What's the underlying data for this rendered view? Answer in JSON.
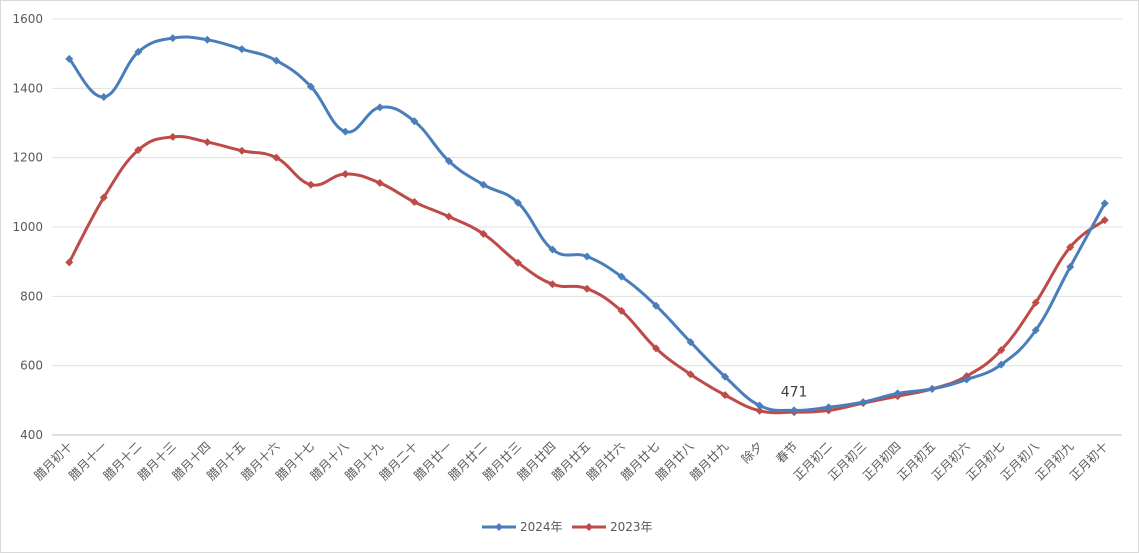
{
  "chart_data": {
    "type": "line",
    "title": "",
    "xlabel": "",
    "ylabel": "",
    "ylim": [
      400,
      1600
    ],
    "yticks": [
      400,
      600,
      800,
      1000,
      1200,
      1400,
      1600
    ],
    "grid": "horizontal",
    "legend_position": "bottom",
    "categories": [
      "腊月初十",
      "腊月十一",
      "腊月十二",
      "腊月十三",
      "腊月十四",
      "腊月十五",
      "腊月十六",
      "腊月十七",
      "腊月十八",
      "腊月十九",
      "腊月二十",
      "腊月廿一",
      "腊月廿二",
      "腊月廿三",
      "腊月廿四",
      "腊月廿五",
      "腊月廿六",
      "腊月廿七",
      "腊月廿八",
      "腊月廿九",
      "除夕",
      "春节",
      "正月初二",
      "正月初三",
      "正月初四",
      "正月初五",
      "正月初六",
      "正月初七",
      "正月初八",
      "正月初九",
      "正月初十"
    ],
    "series": [
      {
        "name": "2024年",
        "color": "#4a7ebb",
        "values": [
          1485,
          1375,
          1505,
          1545,
          1540,
          1513,
          1480,
          1405,
          1275,
          1345,
          1305,
          1190,
          1122,
          1070,
          935,
          915,
          857,
          773,
          668,
          568,
          485,
          471,
          480,
          495,
          520,
          533,
          560,
          603,
          702,
          885,
          1068
        ]
      },
      {
        "name": "2023年",
        "color": "#be4b48",
        "values": [
          898,
          1085,
          1222,
          1260,
          1245,
          1220,
          1200,
          1122,
          1153,
          1127,
          1072,
          1030,
          980,
          897,
          835,
          822,
          758,
          650,
          575,
          515,
          470,
          466,
          471,
          492,
          512,
          533,
          570,
          645,
          782,
          942,
          1020
        ]
      }
    ],
    "annotations": [
      {
        "text": "471",
        "category": "春节",
        "series": "2024年"
      }
    ]
  }
}
